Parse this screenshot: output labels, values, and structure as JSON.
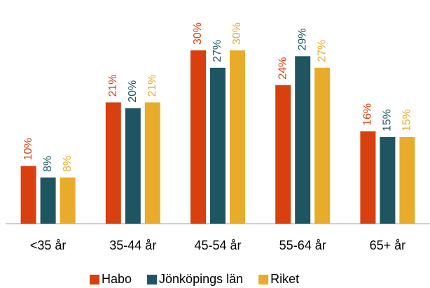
{
  "chart_data": {
    "type": "bar",
    "categories": [
      "<35 år",
      "35-44 år",
      "45-54 år",
      "55-64 år",
      "65+ år"
    ],
    "series": [
      {
        "name": "Habo",
        "color": "#d9400f",
        "values": [
          10,
          21,
          30,
          24,
          16
        ],
        "value_labels": [
          "10%",
          "21%",
          "30%",
          "24%",
          "16%"
        ]
      },
      {
        "name": "Jönköpings län",
        "color": "#1f5561",
        "values": [
          8,
          20,
          27,
          29,
          15
        ],
        "value_labels": [
          "8%",
          "20%",
          "27%",
          "29%",
          "15%"
        ]
      },
      {
        "name": "Riket",
        "color": "#e8ac2a",
        "values": [
          8,
          21,
          30,
          27,
          15
        ],
        "value_labels": [
          "8%",
          "21%",
          "30%",
          "27%",
          "15%"
        ]
      }
    ],
    "ylim": [
      0,
      38
    ],
    "legend": "bottom"
  }
}
